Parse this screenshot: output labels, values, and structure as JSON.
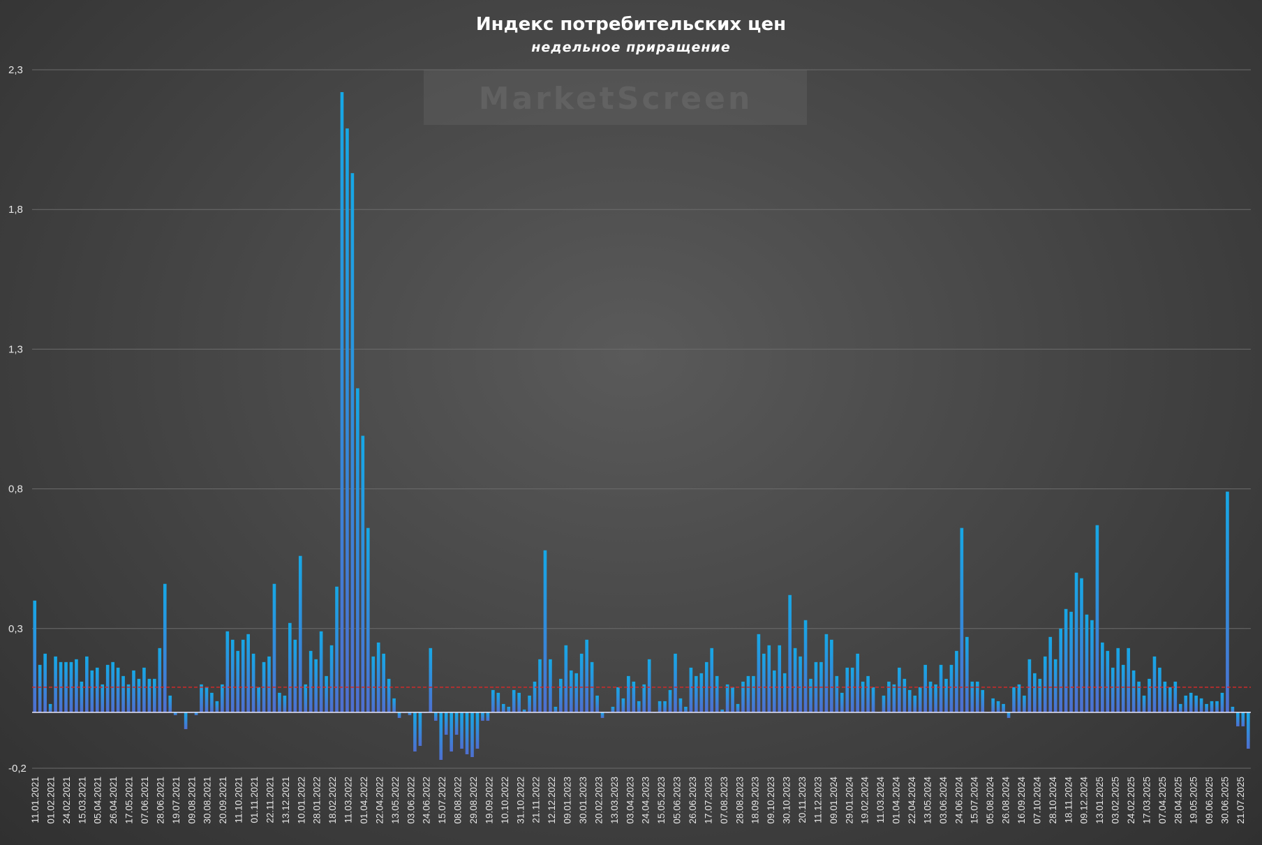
{
  "colors": {
    "bar_top": "#16a8e6",
    "bar_bottom": "#4f6fd0",
    "grid": "#6c6c6c",
    "avg_line": "#d02a2a",
    "text": "#ffffff"
  },
  "watermark": "MarketScreen",
  "chart_data": {
    "type": "bar",
    "title": "Индекс потребительских цен",
    "subtitle": "недельное приращение",
    "xlabel": "",
    "ylabel": "",
    "ylim": [
      -0.2,
      2.3
    ],
    "y_ticks": [
      "2,3",
      "1,8",
      "1,3",
      "0,8",
      "0,3",
      "-0,2"
    ],
    "y_tick_values": [
      2.3,
      1.8,
      1.3,
      0.8,
      0.3,
      -0.2
    ],
    "reference_line": {
      "value": 0.09,
      "style": "dashed",
      "color": "#d02a2a"
    },
    "grid": true,
    "legend": "none",
    "x_tick_labels": [
      "11.01.2021",
      "01.02.2021",
      "24.02.2021",
      "15.03.2021",
      "05.04.2021",
      "26.04.2021",
      "17.05.2021",
      "07.06.2021",
      "28.06.2021",
      "19.07.2021",
      "09.08.2021",
      "30.08.2021",
      "20.09.2021",
      "11.10.2021",
      "01.11.2021",
      "22.11.2021",
      "13.12.2021",
      "10.01.2022",
      "28.01.2022",
      "18.02.2022",
      "11.03.2022",
      "01.04.2022",
      "22.04.2022",
      "13.05.2022",
      "03.06.2022",
      "24.06.2022",
      "15.07.2022",
      "08.08.2022",
      "29.08.2022",
      "19.09.2022",
      "10.10.2022",
      "31.10.2022",
      "21.11.2022",
      "12.12.2022",
      "09.01.2023",
      "30.01.2023",
      "20.02.2023",
      "13.03.2023",
      "03.04.2023",
      "24.04.2023",
      "15.05.2023",
      "05.06.2023",
      "26.06.2023",
      "17.07.2023",
      "07.08.2023",
      "28.08.2023",
      "18.09.2023",
      "09.10.2023",
      "30.10.2023",
      "20.11.2023",
      "11.12.2023",
      "09.01.2024",
      "29.01.2024",
      "19.02.2024",
      "11.03.2024",
      "01.04.2024",
      "22.04.2024",
      "13.05.2024",
      "03.06.2024",
      "24.06.2024",
      "15.07.2024",
      "05.08.2024",
      "26.08.2024",
      "16.09.2024",
      "07.10.2024",
      "28.10.2024",
      "18.11.2024",
      "09.12.2024",
      "13.01.2025",
      "03.02.2025",
      "24.02.2025",
      "17.03.2025",
      "07.04.2025",
      "28.04.2025",
      "19.05.2025",
      "09.06.2025",
      "30.06.2025",
      "21.07.2025"
    ],
    "values": [
      0.4,
      0.17,
      0.21,
      0.03,
      0.2,
      0.18,
      0.18,
      0.18,
      0.19,
      0.11,
      0.2,
      0.15,
      0.16,
      0.1,
      0.17,
      0.18,
      0.16,
      0.13,
      0.1,
      0.15,
      0.12,
      0.16,
      0.12,
      0.12,
      0.23,
      0.46,
      0.06,
      -0.01,
      0,
      -0.06,
      0,
      -0.01,
      0.1,
      0.09,
      0.07,
      0.04,
      0.1,
      0.29,
      0.26,
      0.22,
      0.26,
      0.28,
      0.21,
      0.09,
      0.18,
      0.2,
      0.46,
      0.07,
      0.06,
      0.32,
      0.26,
      0.56,
      0.1,
      0.22,
      0.19,
      0.29,
      0.13,
      0.24,
      0.45,
      2.22,
      2.09,
      1.93,
      1.16,
      0.99,
      0.66,
      0.2,
      0.25,
      0.21,
      0.12,
      0.05,
      -0.02,
      0,
      -0.01,
      -0.14,
      -0.12,
      0,
      0.23,
      -0.03,
      -0.17,
      -0.08,
      -0.14,
      -0.08,
      -0.13,
      -0.15,
      -0.16,
      -0.13,
      -0.03,
      -0.03,
      0.08,
      0.07,
      0.03,
      0.02,
      0.08,
      0.07,
      0.01,
      0.06,
      0.11,
      0.19,
      0.58,
      0.19,
      0.02,
      0.12,
      0.24,
      0.15,
      0.14,
      0.21,
      0.26,
      0.18,
      0.06,
      -0.02,
      0,
      0.02,
      0.09,
      0.05,
      0.13,
      0.11,
      0.04,
      0.1,
      0.19,
      0,
      0.04,
      0.04,
      0.08,
      0.21,
      0.05,
      0.02,
      0.16,
      0.13,
      0.14,
      0.18,
      0.23,
      0.13,
      0.01,
      0.1,
      0.09,
      0.03,
      0.11,
      0.13,
      0.13,
      0.28,
      0.21,
      0.24,
      0.15,
      0.24,
      0.14,
      0.42,
      0.23,
      0.2,
      0.33,
      0.12,
      0.18,
      0.18,
      0.28,
      0.26,
      0.13,
      0.07,
      0.16,
      0.16,
      0.21,
      0.11,
      0.13,
      0.09,
      0,
      0.06,
      0.11,
      0.1,
      0.16,
      0.12,
      0.08,
      0.06,
      0.09,
      0.17,
      0.11,
      0.1,
      0.17,
      0.12,
      0.17,
      0.22,
      0.66,
      0.27,
      0.11,
      0.11,
      0.08,
      0,
      0.05,
      0.04,
      0.03,
      -0.02,
      0.09,
      0.1,
      0.06,
      0.19,
      0.14,
      0.12,
      0.2,
      0.27,
      0.19,
      0.3,
      0.37,
      0.36,
      0.5,
      0.48,
      0.35,
      0.33,
      0.67,
      0.25,
      0.22,
      0.16,
      0.23,
      0.17,
      0.23,
      0.15,
      0.11,
      0.06,
      0.12,
      0.2,
      0.16,
      0.11,
      0.09,
      0.11,
      0.03,
      0.06,
      0.07,
      0.06,
      0.05,
      0.03,
      0.04,
      0.04,
      0.07,
      0.79,
      0.02,
      -0.05,
      -0.05,
      -0.13
    ]
  }
}
